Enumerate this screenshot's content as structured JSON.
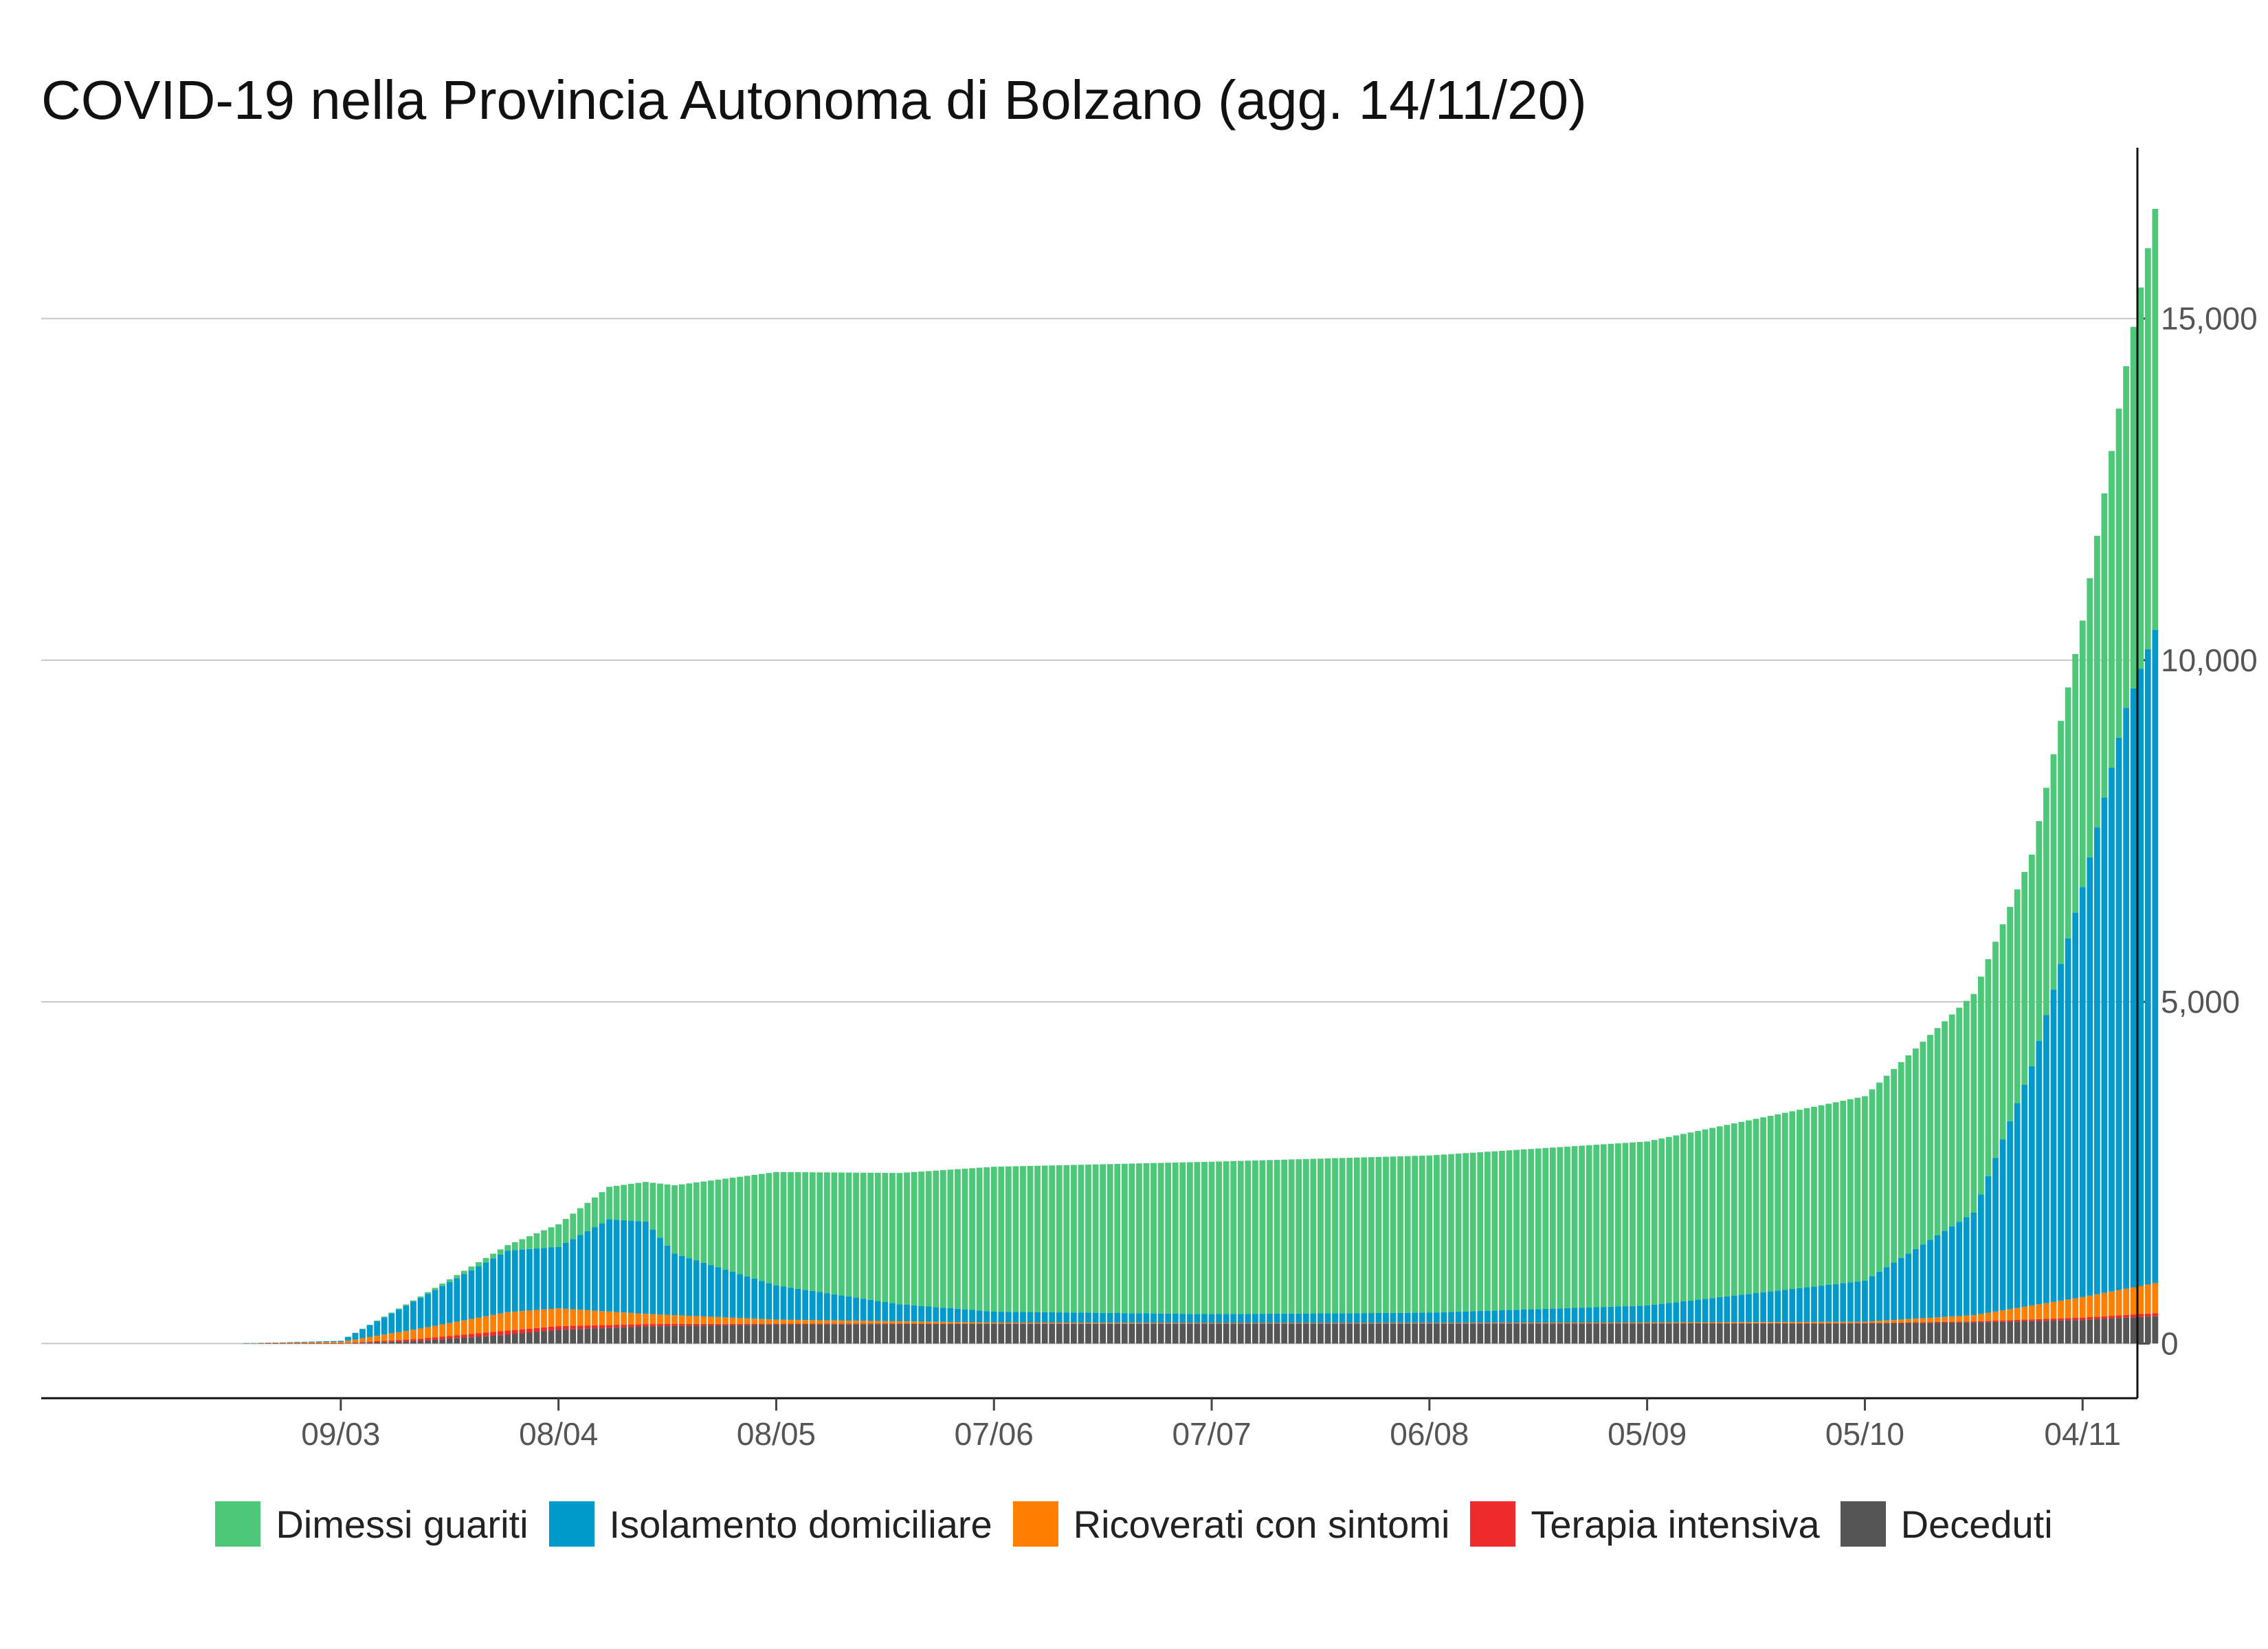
{
  "chart_data": {
    "type": "bar",
    "stacked": true,
    "title": "COVID-19 nella Provincia Autonoma di Bolzano (agg. 14/11/20)",
    "xlabel": "",
    "ylabel": "",
    "x_start": "2020-02-24",
    "x_end": "2020-11-14",
    "x_ticks": [
      "09/03",
      "08/04",
      "08/05",
      "07/06",
      "07/07",
      "06/08",
      "05/09",
      "05/10",
      "04/11"
    ],
    "y_ticks": [
      "0",
      "5,000",
      "10,000",
      "15,000"
    ],
    "ylim": [
      -800,
      17500
    ],
    "y_axis_position": "right",
    "grid": "horizontal",
    "legend_position": "bottom",
    "series": [
      {
        "name": "Deceduti",
        "color": "#555555",
        "points": [
          [
            "2020-02-24",
            0
          ],
          [
            "2020-03-09",
            2
          ],
          [
            "2020-03-20",
            40
          ],
          [
            "2020-04-01",
            130
          ],
          [
            "2020-04-08",
            200
          ],
          [
            "2020-04-20",
            250
          ],
          [
            "2020-05-08",
            280
          ],
          [
            "2020-06-07",
            290
          ],
          [
            "2020-07-07",
            292
          ],
          [
            "2020-08-06",
            293
          ],
          [
            "2020-09-05",
            293
          ],
          [
            "2020-10-05",
            295
          ],
          [
            "2020-10-20",
            310
          ],
          [
            "2020-11-04",
            345
          ],
          [
            "2020-11-14",
            400
          ]
        ]
      },
      {
        "name": "Terapia intensiva",
        "color": "#ee2b2b",
        "points": [
          [
            "2020-02-24",
            0
          ],
          [
            "2020-03-09",
            3
          ],
          [
            "2020-03-20",
            30
          ],
          [
            "2020-04-01",
            60
          ],
          [
            "2020-04-08",
            55
          ],
          [
            "2020-04-20",
            35
          ],
          [
            "2020-05-08",
            10
          ],
          [
            "2020-06-07",
            2
          ],
          [
            "2020-07-07",
            1
          ],
          [
            "2020-08-06",
            1
          ],
          [
            "2020-09-05",
            2
          ],
          [
            "2020-10-05",
            5
          ],
          [
            "2020-10-20",
            15
          ],
          [
            "2020-11-04",
            35
          ],
          [
            "2020-11-14",
            45
          ]
        ]
      },
      {
        "name": "Ricoverati con sintomi",
        "color": "#ff8000",
        "points": [
          [
            "2020-02-24",
            0
          ],
          [
            "2020-03-09",
            20
          ],
          [
            "2020-03-20",
            150
          ],
          [
            "2020-04-01",
            270
          ],
          [
            "2020-04-08",
            260
          ],
          [
            "2020-04-20",
            150
          ],
          [
            "2020-05-08",
            60
          ],
          [
            "2020-06-07",
            15
          ],
          [
            "2020-07-07",
            8
          ],
          [
            "2020-08-06",
            8
          ],
          [
            "2020-09-05",
            12
          ],
          [
            "2020-10-05",
            20
          ],
          [
            "2020-10-20",
            90
          ],
          [
            "2020-11-04",
            300
          ],
          [
            "2020-11-14",
            440
          ]
        ]
      },
      {
        "name": "Isolamento domiciliare",
        "color": "#0099cc",
        "points": [
          [
            "2020-02-24",
            0
          ],
          [
            "2020-03-09",
            15
          ],
          [
            "2020-03-20",
            450
          ],
          [
            "2020-04-01",
            900
          ],
          [
            "2020-04-08",
            900
          ],
          [
            "2020-04-15",
            1350
          ],
          [
            "2020-04-20",
            1350
          ],
          [
            "2020-04-24",
            900
          ],
          [
            "2020-05-08",
            500
          ],
          [
            "2020-05-25",
            250
          ],
          [
            "2020-06-07",
            160
          ],
          [
            "2020-07-07",
            130
          ],
          [
            "2020-08-06",
            150
          ],
          [
            "2020-09-05",
            250
          ],
          [
            "2020-10-05",
            600
          ],
          [
            "2020-10-20",
            1500
          ],
          [
            "2020-10-28",
            3500
          ],
          [
            "2020-11-04",
            6000
          ],
          [
            "2020-11-10",
            8500
          ],
          [
            "2020-11-14",
            9560
          ]
        ]
      },
      {
        "name": "Dimessi guariti",
        "color": "#4dc879",
        "points": [
          [
            "2020-02-24",
            0
          ],
          [
            "2020-03-09",
            0
          ],
          [
            "2020-03-20",
            20
          ],
          [
            "2020-04-01",
            80
          ],
          [
            "2020-04-08",
            330
          ],
          [
            "2020-04-20",
            580
          ],
          [
            "2020-04-24",
            1000
          ],
          [
            "2020-05-08",
            1660
          ],
          [
            "2020-06-07",
            2120
          ],
          [
            "2020-07-07",
            2230
          ],
          [
            "2020-08-06",
            2300
          ],
          [
            "2020-09-05",
            2400
          ],
          [
            "2020-10-05",
            2700
          ],
          [
            "2020-10-20",
            3200
          ],
          [
            "2020-10-28",
            3100
          ],
          [
            "2020-11-04",
            3900
          ],
          [
            "2020-11-10",
            5000
          ],
          [
            "2020-11-14",
            6160
          ]
        ]
      }
    ]
  }
}
